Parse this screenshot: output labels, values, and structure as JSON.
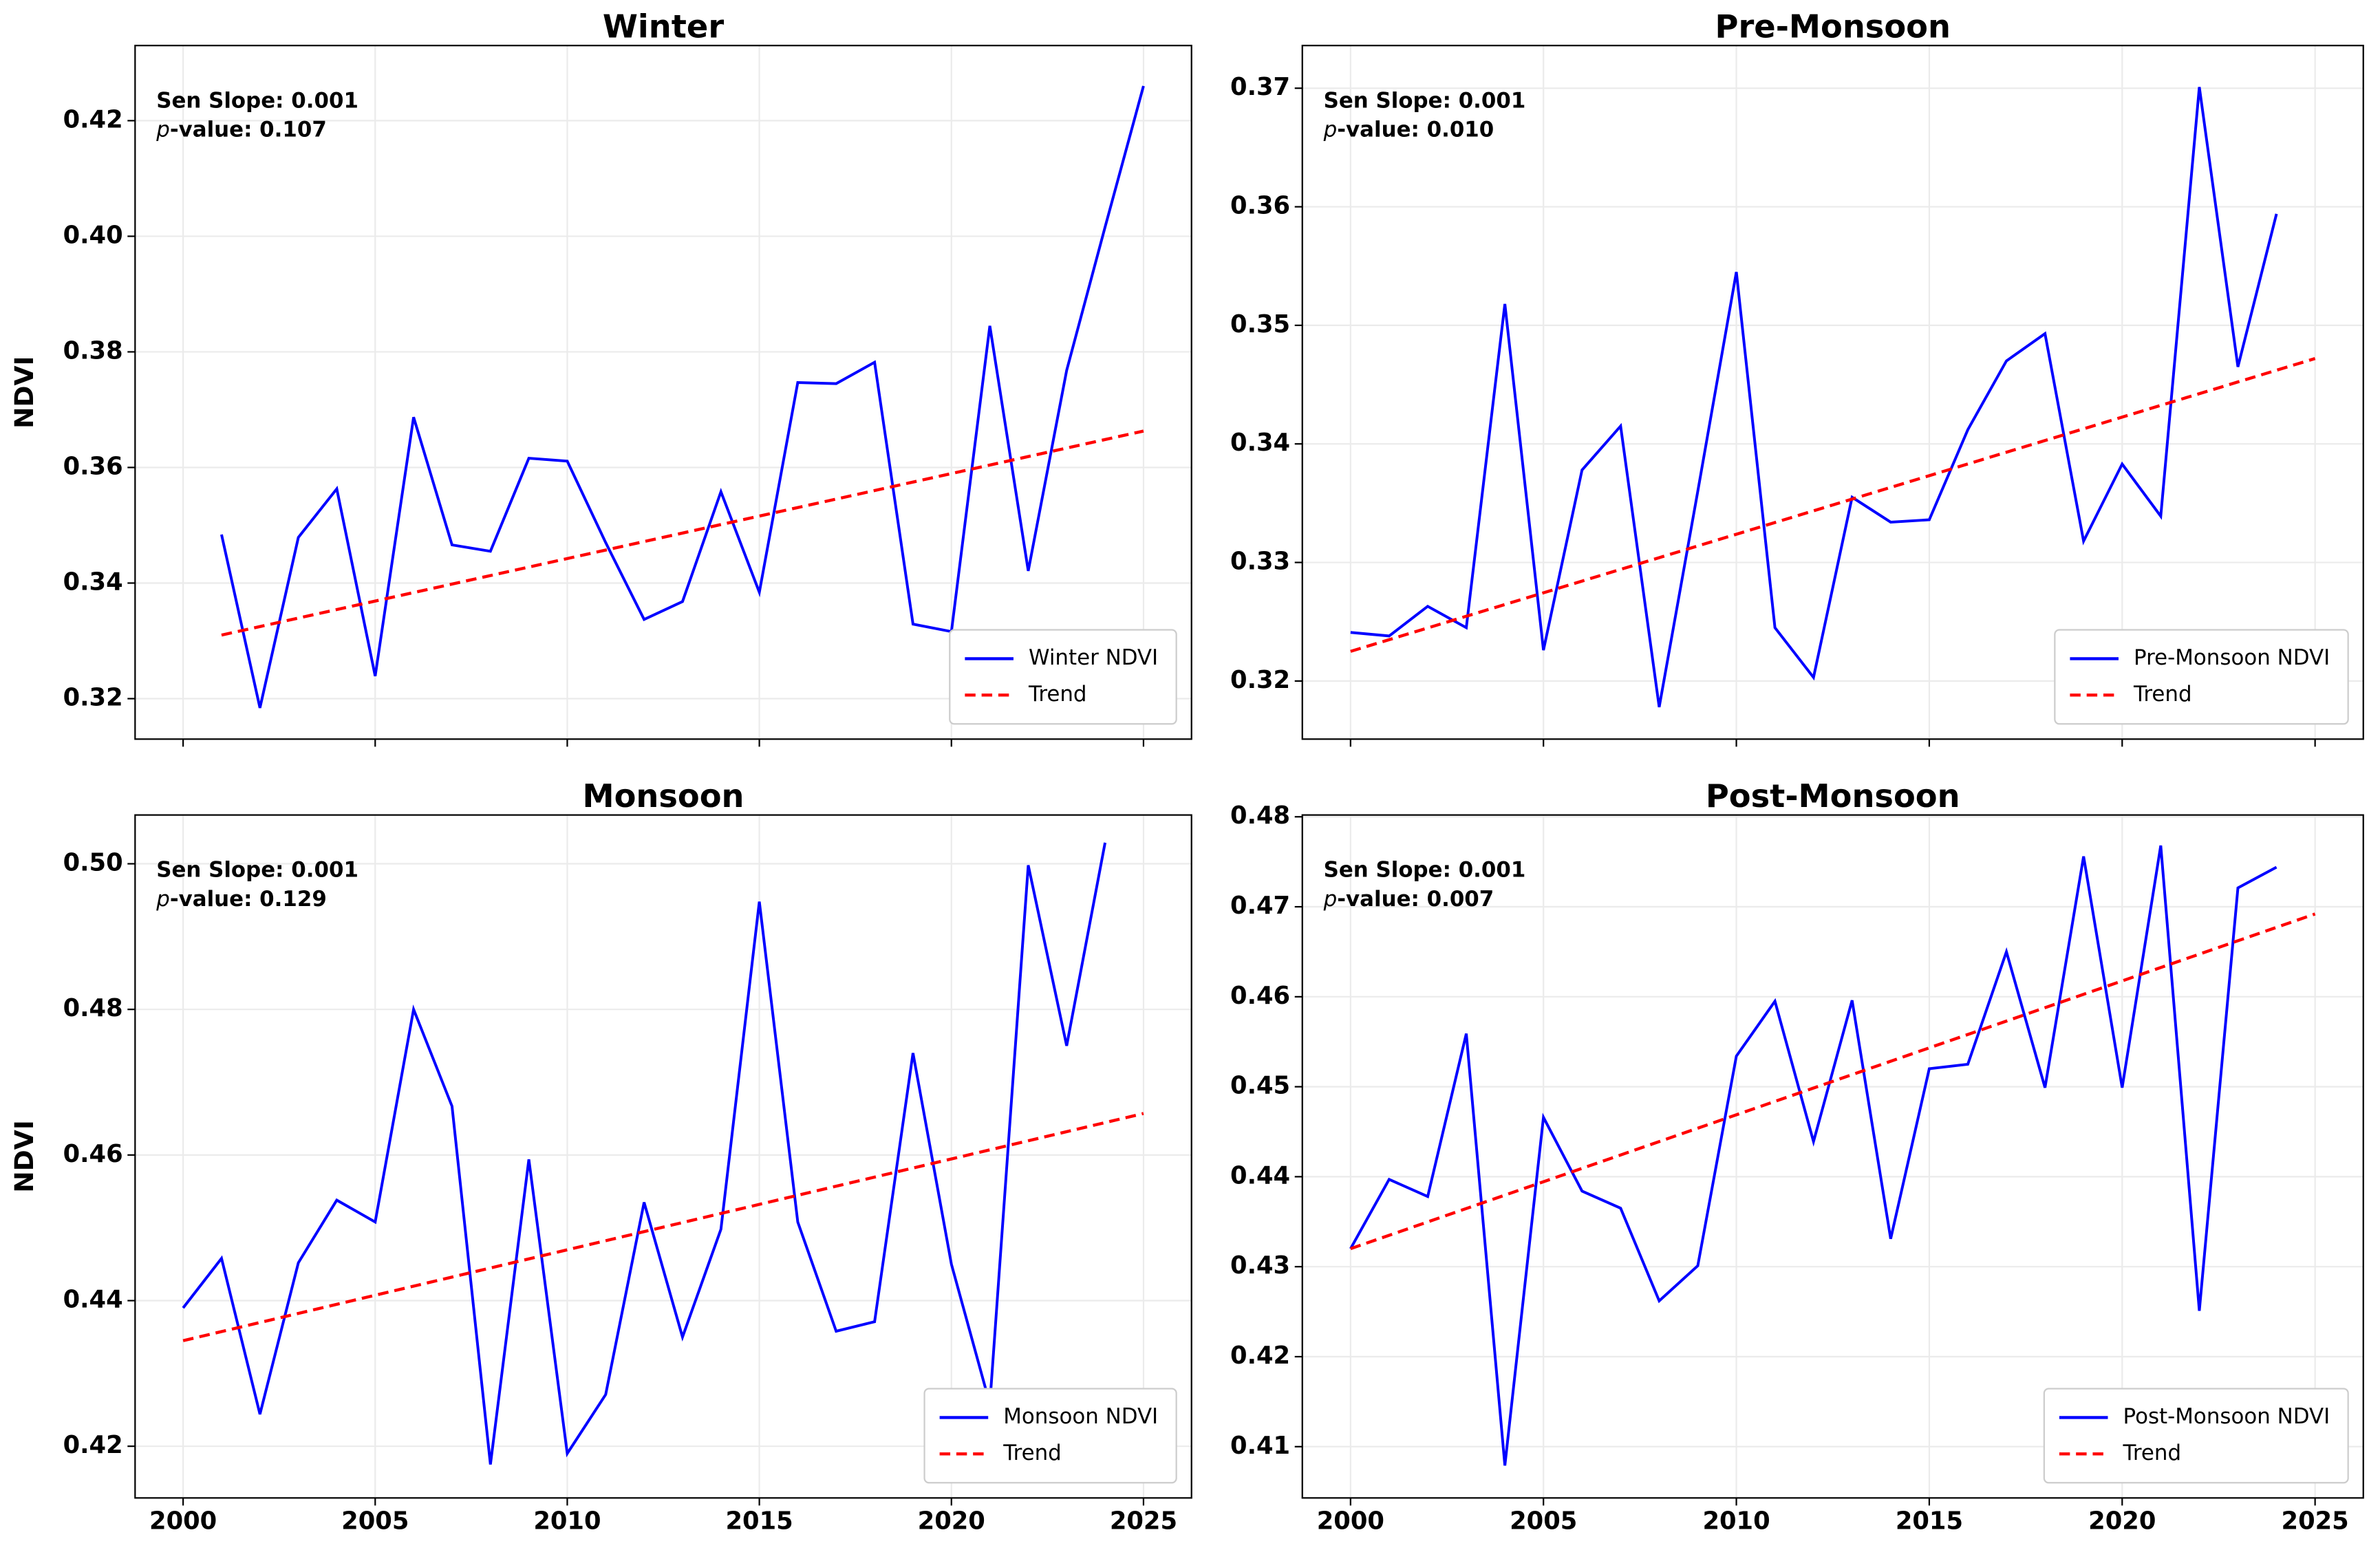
{
  "chart_data": [
    {
      "type": "line",
      "title": "Winter",
      "ylabel": "NDVI",
      "annotations": [
        "Sen Slope: 0.001",
        "p-value: 0.107"
      ],
      "xlim": [
        1998.75,
        2026.25
      ],
      "xticks": [
        2000,
        2005,
        2010,
        2015,
        2020,
        2025
      ],
      "xtick_labels": false,
      "ylim": [
        0.313,
        0.433
      ],
      "yticks": [
        0.32,
        0.34,
        0.36,
        0.38,
        {
          "value": 0.4,
          "label": "0.40"
        },
        0.42
      ],
      "grid": true,
      "legend": "lower right",
      "series": [
        {
          "name": "Winter NDVI",
          "color": "#0000ff",
          "linestyle": "solid",
          "x": [
            2001,
            2002,
            2003,
            2004,
            2005,
            2006,
            2007,
            2008,
            2009,
            2010,
            2011,
            2012,
            2013,
            2014,
            2015,
            2016,
            2017,
            2018,
            2019,
            2020,
            2021,
            2022,
            2023,
            2024,
            2025
          ],
          "values": [
            0.3484,
            0.3184,
            0.3479,
            0.3563,
            0.3239,
            0.3687,
            0.3466,
            0.3455,
            0.3616,
            0.3611,
            0.347,
            0.3337,
            0.3368,
            0.3558,
            0.3384,
            0.3747,
            0.3745,
            0.3782,
            0.3329,
            0.3316,
            0.3845,
            0.3421,
            0.3768,
            0.4016,
            0.426
          ]
        },
        {
          "name": "Trend",
          "color": "#ff0000",
          "linestyle": "dashed",
          "x": [
            2001,
            2025
          ],
          "values": [
            0.331,
            0.3663
          ]
        }
      ]
    },
    {
      "type": "line",
      "title": "Pre-Monsoon",
      "annotations": [
        "Sen Slope: 0.001",
        "p-value: 0.010"
      ],
      "xlim": [
        1998.75,
        2026.25
      ],
      "xticks": [
        2000,
        2005,
        2010,
        2015,
        2020,
        2025
      ],
      "xtick_labels": false,
      "ylim": [
        0.3151,
        0.3736
      ],
      "yticks": [
        0.32,
        0.33,
        0.34,
        0.35,
        0.36,
        0.37
      ],
      "grid": true,
      "legend": "lower right",
      "series": [
        {
          "name": "Pre-Monsoon NDVI",
          "color": "#0000ff",
          "linestyle": "solid",
          "x": [
            2000,
            2001,
            2002,
            2003,
            2004,
            2005,
            2006,
            2007,
            2008,
            2009,
            2010,
            2011,
            2012,
            2013,
            2014,
            2015,
            2016,
            2017,
            2018,
            2019,
            2020,
            2021,
            2022,
            2023,
            2024
          ],
          "values": [
            0.3241,
            0.3238,
            0.3263,
            0.3245,
            0.3518,
            0.3226,
            0.3378,
            0.3415,
            0.3178,
            0.336,
            0.3545,
            0.3245,
            0.3203,
            0.3355,
            0.3334,
            0.3336,
            0.3412,
            0.347,
            0.3493,
            0.3318,
            0.3383,
            0.3339,
            0.3701,
            0.3465,
            0.3594
          ]
        },
        {
          "name": "Trend",
          "color": "#ff0000",
          "linestyle": "dashed",
          "x": [
            2000,
            2025
          ],
          "values": [
            0.3225,
            0.3472
          ]
        }
      ]
    },
    {
      "type": "line",
      "title": "Monsoon",
      "ylabel": "NDVI",
      "annotations": [
        "Sen Slope: 0.001",
        "p-value: 0.129"
      ],
      "xlim": [
        1998.75,
        2026.25
      ],
      "xticks": [
        2000,
        2005,
        2010,
        2015,
        2020,
        2025
      ],
      "xtick_labels": true,
      "ylim": [
        0.4129,
        0.5067
      ],
      "yticks": [
        0.42,
        0.44,
        0.46,
        0.48,
        {
          "value": 0.5,
          "label": "0.50"
        }
      ],
      "grid": true,
      "legend": "lower right",
      "series": [
        {
          "name": "Monsoon NDVI",
          "color": "#0000ff",
          "linestyle": "solid",
          "x": [
            2000,
            2001,
            2002,
            2003,
            2004,
            2005,
            2006,
            2007,
            2008,
            2009,
            2010,
            2011,
            2012,
            2013,
            2014,
            2015,
            2016,
            2017,
            2018,
            2019,
            2020,
            2021,
            2022,
            2023,
            2024
          ],
          "values": [
            0.439,
            0.4458,
            0.4244,
            0.4452,
            0.4538,
            0.4508,
            0.48,
            0.4667,
            0.4175,
            0.4594,
            0.419,
            0.4271,
            0.4535,
            0.435,
            0.4498,
            0.4948,
            0.4508,
            0.4358,
            0.4371,
            0.474,
            0.445,
            0.4258,
            0.4998,
            0.475,
            0.5029
          ]
        },
        {
          "name": "Trend",
          "color": "#ff0000",
          "linestyle": "dashed",
          "x": [
            2000,
            2025
          ],
          "values": [
            0.4345,
            0.4657
          ]
        }
      ]
    },
    {
      "type": "line",
      "title": "Post-Monsoon",
      "annotations": [
        "Sen Slope: 0.001",
        "p-value: 0.007"
      ],
      "xlim": [
        1998.75,
        2026.25
      ],
      "xticks": [
        2000,
        2005,
        2010,
        2015,
        2020,
        2025
      ],
      "xtick_labels": true,
      "ylim": [
        0.4043,
        0.4802
      ],
      "yticks": [
        0.41,
        0.42,
        0.43,
        0.44,
        0.45,
        0.46,
        0.47,
        0.48
      ],
      "grid": true,
      "legend": "lower right",
      "series": [
        {
          "name": "Post-Monsoon NDVI",
          "color": "#0000ff",
          "linestyle": "solid",
          "x": [
            2000,
            2001,
            2002,
            2003,
            2004,
            2005,
            2006,
            2007,
            2008,
            2009,
            2010,
            2011,
            2012,
            2013,
            2014,
            2015,
            2016,
            2017,
            2018,
            2019,
            2020,
            2021,
            2022,
            2023,
            2024
          ],
          "values": [
            0.432,
            0.4397,
            0.4378,
            0.4559,
            0.4079,
            0.4466,
            0.4384,
            0.4365,
            0.4262,
            0.4301,
            0.4534,
            0.4595,
            0.4439,
            0.4596,
            0.4331,
            0.452,
            0.4525,
            0.465,
            0.4499,
            0.4756,
            0.4499,
            0.4768,
            0.4251,
            0.4721,
            0.4744
          ]
        },
        {
          "name": "Trend",
          "color": "#ff0000",
          "linestyle": "dashed",
          "x": [
            2000,
            2025
          ],
          "values": [
            0.432,
            0.4692
          ]
        }
      ]
    }
  ]
}
